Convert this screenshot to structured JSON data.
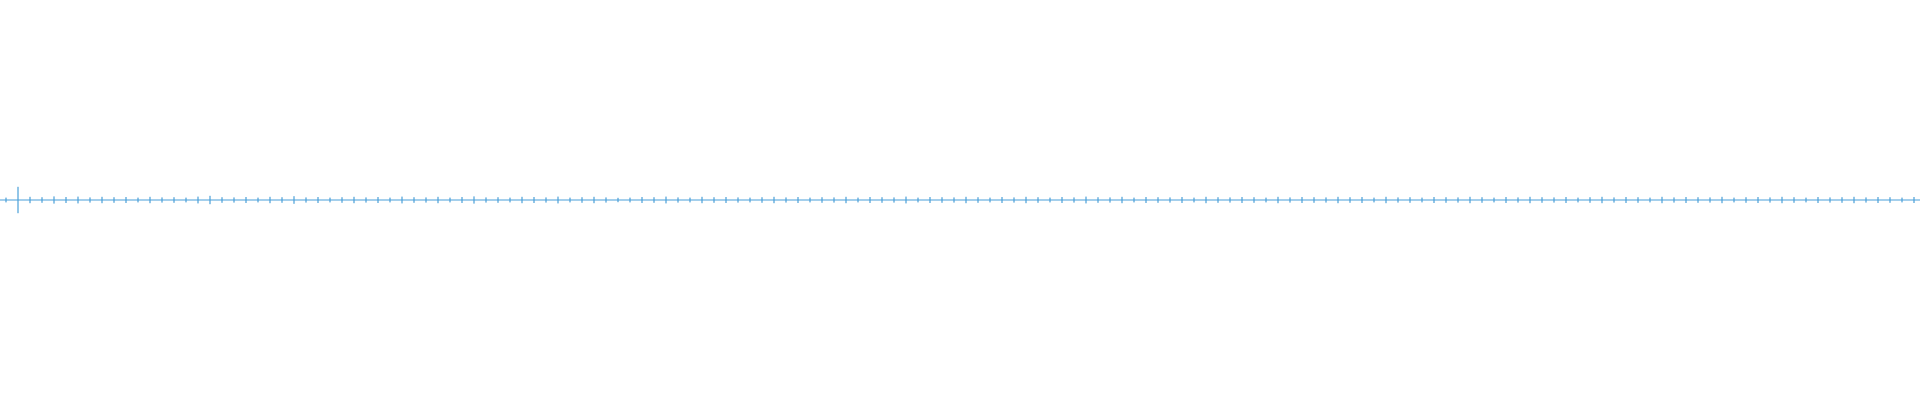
{
  "chart_data": {
    "type": "waveform",
    "color": "#4a9fd8",
    "ylim": [
      -1,
      1
    ],
    "values": [
      0.012,
      0.066,
      0.016,
      0.014,
      0.018,
      0.015,
      0.017,
      0.013,
      0.016,
      0.014,
      0.015,
      0.012,
      0.016,
      0.013,
      0.014,
      0.012,
      0.017,
      0.021,
      0.014,
      0.013,
      0.015,
      0.012,
      0.016,
      0.014,
      0.019,
      0.013,
      0.015,
      0.012,
      0.014,
      0.016,
      0.013,
      0.015,
      0.012,
      0.017,
      0.014,
      0.013,
      0.016,
      0.012,
      0.015,
      0.018,
      0.013,
      0.014,
      0.012,
      0.016,
      0.015,
      0.013,
      0.017,
      0.012,
      0.014,
      0.016,
      0.013,
      0.011,
      0.012,
      0.015,
      0.014,
      0.017,
      0.013,
      0.012,
      0.016,
      0.014,
      0.015,
      0.013,
      0.012,
      0.014,
      0.016,
      0.013,
      0.015,
      0.012,
      0.014,
      0.013,
      0.016,
      0.012,
      0.015,
      0.014,
      0.013,
      0.017,
      0.012,
      0.015,
      0.014,
      0.013,
      0.016,
      0.014,
      0.012,
      0.015,
      0.013,
      0.016,
      0.014,
      0.012,
      0.015,
      0.013,
      0.017,
      0.014,
      0.013,
      0.016,
      0.012,
      0.015,
      0.014,
      0.013,
      0.015,
      0.012,
      0.016,
      0.014,
      0.013,
      0.015,
      0.014,
      0.012,
      0.016,
      0.013,
      0.015,
      0.014,
      0.013,
      0.016,
      0.014,
      0.015,
      0.012,
      0.016,
      0.013,
      0.014,
      0.012,
      0.015,
      0.014,
      0.013,
      0.016,
      0.014,
      0.012,
      0.015,
      0.013,
      0.016,
      0.014,
      0.013,
      0.015,
      0.012,
      0.014,
      0.016,
      0.013,
      0.015,
      0.014,
      0.012,
      0.016,
      0.013,
      0.015,
      0.014,
      0.013,
      0.016,
      0.012,
      0.014,
      0.015,
      0.013,
      0.016,
      0.014,
      0.012,
      0.015,
      0.013,
      0.014,
      0.016,
      0.013,
      0.015,
      0.014,
      0.012,
      0.015
    ]
  }
}
